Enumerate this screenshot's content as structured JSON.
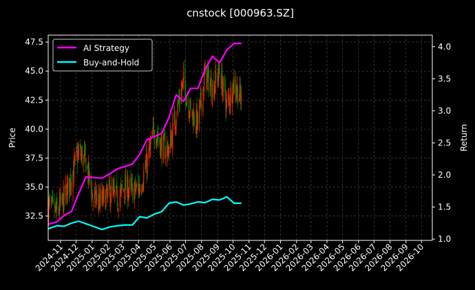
{
  "chart_data": {
    "type": "line",
    "title": "cnstock [000963.SZ]",
    "ylabel_left": "Price",
    "ylabel_right": "Return",
    "ylim_left": [
      30.4,
      48.1
    ],
    "ylim_right": [
      0.98,
      4.18
    ],
    "xlim": [
      "2024-10-08",
      "2026-10-22"
    ],
    "yticks_left": [
      "32.5",
      "35.0",
      "37.5",
      "40.0",
      "42.5",
      "45.0",
      "47.5"
    ],
    "yticks_right": [
      "1.0",
      "1.5",
      "2.0",
      "2.5",
      "3.0",
      "3.5",
      "4.0"
    ],
    "xticks": [
      "2024-11",
      "2024-12",
      "2025-01",
      "2025-02",
      "2025-03",
      "2025-04",
      "2025-05",
      "2025-06",
      "2025-07",
      "2025-08",
      "2025-09",
      "2025-10",
      "2025-11",
      "2025-12",
      "2026-01",
      "2026-02",
      "2026-03",
      "2026-04",
      "2026-05",
      "2026-06",
      "2026-07",
      "2026-08",
      "2026-09",
      "2026-10"
    ],
    "grid": true,
    "legend_position": "top-left",
    "colors": {
      "ai": "#ff00ff",
      "bh": "#00ffff",
      "up": "#ff2200",
      "down": "#008800",
      "grid": "#555555"
    },
    "series": [
      {
        "name": "AI Strategy",
        "axis": "right",
        "x": [
          "2024-10-08",
          "2024-10-25",
          "2024-11-08",
          "2024-11-22",
          "2024-12-06",
          "2024-12-20",
          "2025-01-03",
          "2025-01-20",
          "2025-02-05",
          "2025-02-20",
          "2025-03-05",
          "2025-03-20",
          "2025-04-03",
          "2025-04-17",
          "2025-05-02",
          "2025-05-16",
          "2025-05-30",
          "2025-06-13",
          "2025-06-27",
          "2025-07-11",
          "2025-07-25",
          "2025-08-08",
          "2025-08-22",
          "2025-09-05",
          "2025-09-19",
          "2025-10-03",
          "2025-10-17"
        ],
        "values": [
          1.23,
          1.27,
          1.37,
          1.43,
          1.71,
          1.97,
          1.96,
          1.95,
          2.02,
          2.1,
          2.13,
          2.17,
          2.32,
          2.55,
          2.6,
          2.65,
          2.9,
          3.25,
          3.15,
          3.35,
          3.35,
          3.65,
          3.85,
          3.75,
          3.95,
          4.05,
          4.05
        ]
      },
      {
        "name": "Buy-and-Hold",
        "axis": "right",
        "x": [
          "2024-10-08",
          "2024-10-25",
          "2024-11-08",
          "2024-11-22",
          "2024-12-06",
          "2024-12-20",
          "2025-01-03",
          "2025-01-20",
          "2025-02-05",
          "2025-02-20",
          "2025-03-05",
          "2025-03-20",
          "2025-04-03",
          "2025-04-17",
          "2025-05-02",
          "2025-05-16",
          "2025-05-30",
          "2025-06-13",
          "2025-06-27",
          "2025-07-11",
          "2025-07-25",
          "2025-08-08",
          "2025-08-22",
          "2025-09-05",
          "2025-09-19",
          "2025-10-03",
          "2025-10-17"
        ],
        "values": [
          1.16,
          1.21,
          1.2,
          1.25,
          1.28,
          1.24,
          1.2,
          1.15,
          1.19,
          1.21,
          1.22,
          1.22,
          1.35,
          1.33,
          1.39,
          1.43,
          1.56,
          1.58,
          1.53,
          1.55,
          1.58,
          1.57,
          1.62,
          1.61,
          1.66,
          1.56,
          1.56
        ]
      },
      {
        "name": "Price",
        "axis": "left",
        "x": [
          "2024-10-08",
          "2024-10-25",
          "2024-11-08",
          "2024-11-22",
          "2024-12-06",
          "2024-12-20",
          "2025-01-03",
          "2025-01-20",
          "2025-02-05",
          "2025-02-20",
          "2025-03-05",
          "2025-03-20",
          "2025-04-03",
          "2025-04-17",
          "2025-05-02",
          "2025-05-16",
          "2025-05-30",
          "2025-06-13",
          "2025-06-27",
          "2025-07-11",
          "2025-07-25",
          "2025-08-08",
          "2025-08-22",
          "2025-09-05",
          "2025-09-19",
          "2025-10-03",
          "2025-10-17"
        ],
        "values": [
          33.4,
          32.8,
          34.0,
          35.9,
          38.0,
          37.2,
          34.0,
          33.8,
          34.5,
          34.0,
          35.0,
          34.6,
          35.0,
          37.0,
          40.0,
          38.5,
          38.2,
          41.5,
          44.0,
          41.5,
          40.5,
          44.8,
          43.5,
          45.0,
          42.0,
          44.0,
          42.5
        ]
      }
    ]
  }
}
